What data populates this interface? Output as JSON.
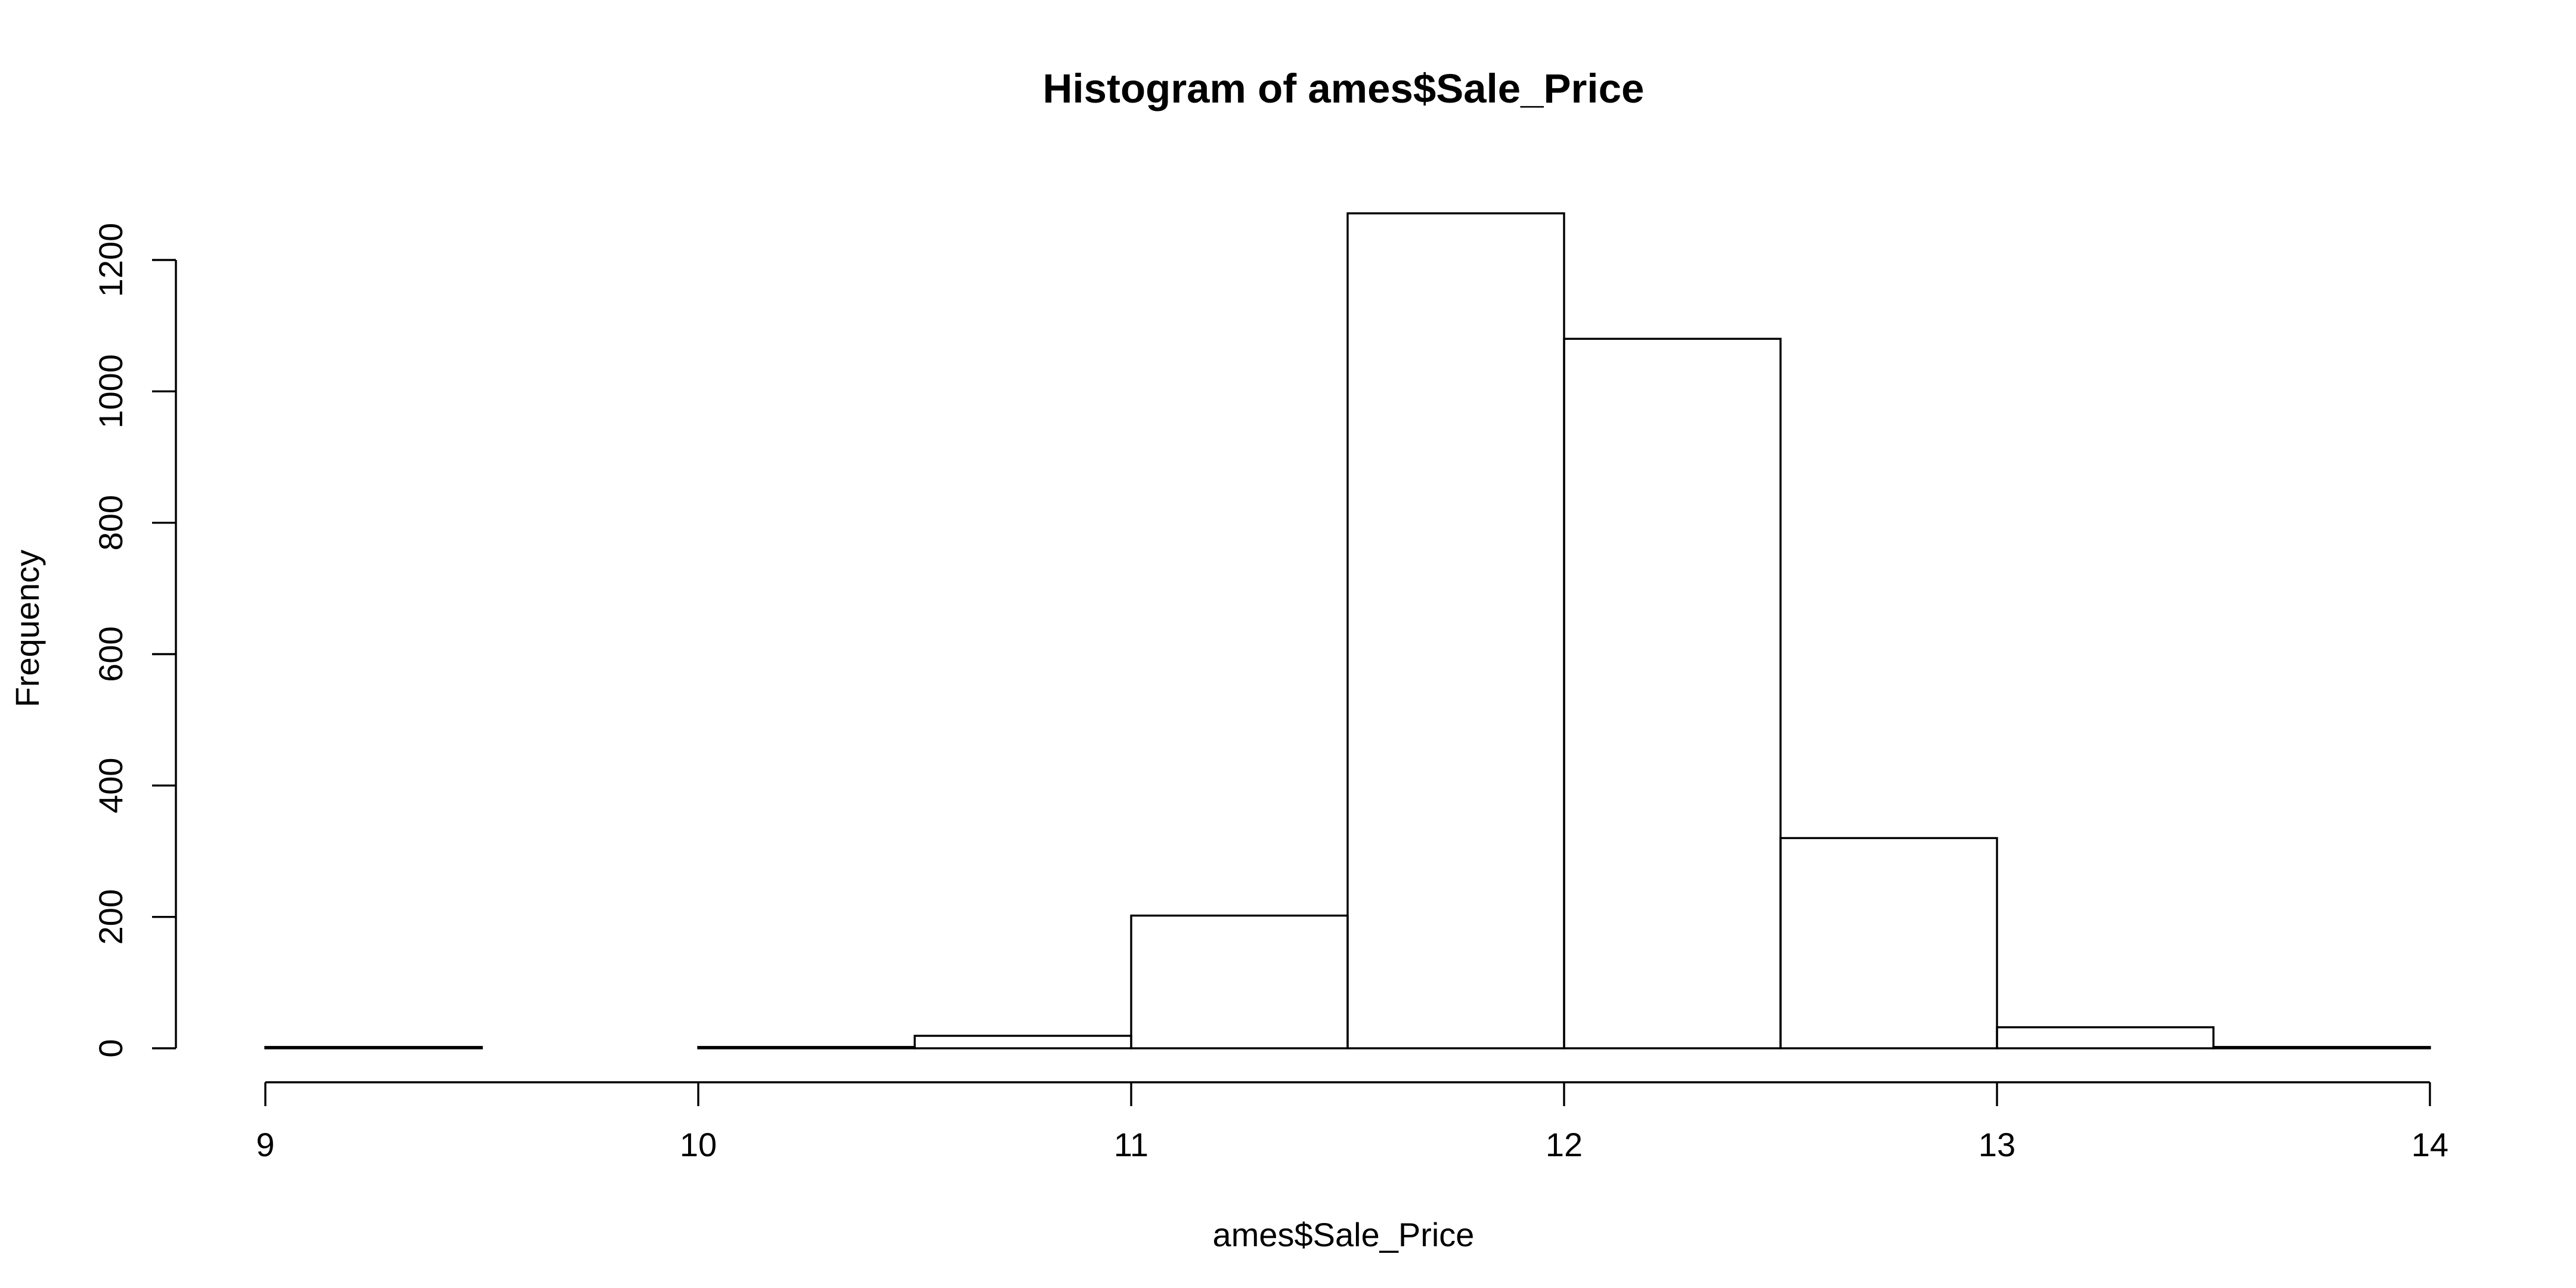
{
  "chart_data": {
    "type": "bar",
    "title": "Histogram of ames$Sale_Price",
    "xlabel": "ames$Sale_Price",
    "ylabel": "Frequency",
    "xlim": [
      9,
      14
    ],
    "ylim": [
      0,
      1200
    ],
    "x_ticks": [
      "9",
      "10",
      "11",
      "12",
      "13",
      "14"
    ],
    "y_ticks": [
      "0",
      "200",
      "400",
      "600",
      "800",
      "1000",
      "1200"
    ],
    "grid": false,
    "legend": "none",
    "bins": [
      {
        "start": 9.0,
        "end": 9.5,
        "count": 2
      },
      {
        "start": 9.5,
        "end": 10.0,
        "count": 0
      },
      {
        "start": 10.0,
        "end": 10.5,
        "count": 2
      },
      {
        "start": 10.5,
        "end": 11.0,
        "count": 19
      },
      {
        "start": 11.0,
        "end": 11.5,
        "count": 202
      },
      {
        "start": 11.5,
        "end": 12.0,
        "count": 1271
      },
      {
        "start": 12.0,
        "end": 12.5,
        "count": 1080
      },
      {
        "start": 12.5,
        "end": 13.0,
        "count": 320
      },
      {
        "start": 13.0,
        "end": 13.5,
        "count": 32
      },
      {
        "start": 13.5,
        "end": 14.0,
        "count": 2
      }
    ]
  }
}
